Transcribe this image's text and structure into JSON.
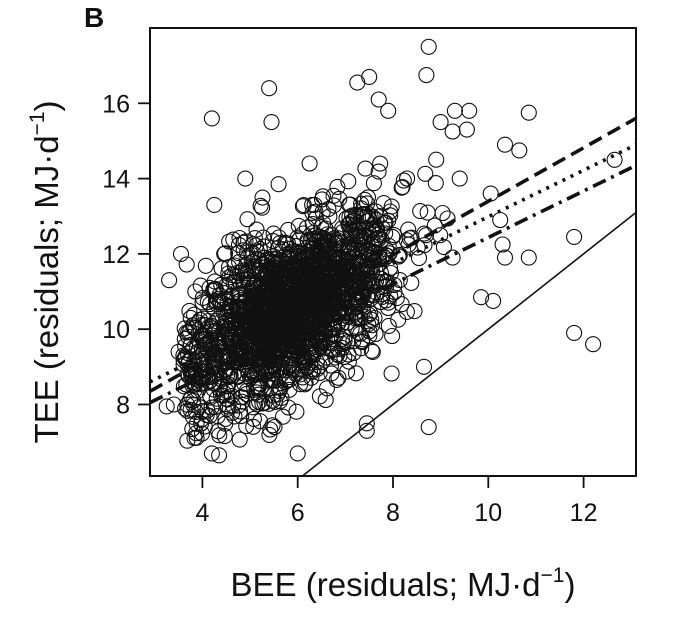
{
  "panel_label": "B",
  "chart_data": {
    "type": "scatter",
    "title": "",
    "xlabel": {
      "main": "BEE (residuals; MJ·d",
      "sup": "−1",
      "close": ")"
    },
    "ylabel": {
      "main": "TEE (residuals; MJ·d",
      "sup": "−1",
      "close": ")"
    },
    "xlim": [
      2.9,
      13.1
    ],
    "ylim": [
      6.1,
      18.0
    ],
    "xticks": [
      4,
      6,
      8,
      10,
      12
    ],
    "yticks": [
      8,
      10,
      12,
      14,
      16
    ],
    "xtick_labels": [
      "4",
      "6",
      "8",
      "10",
      "12"
    ],
    "ytick_labels": [
      "8",
      "10",
      "12",
      "14",
      "16"
    ],
    "grid": false,
    "legend": "none",
    "marker": "open-circle",
    "n_points_approx": 2000,
    "cloud": {
      "x_mean": 5.9,
      "x_sd": 1.05,
      "y_mean": 10.6,
      "y_sd": 1.25,
      "slope": 0.62
    },
    "outliers": [
      {
        "x": 8.75,
        "y": 17.5
      },
      {
        "x": 8.7,
        "y": 16.75
      },
      {
        "x": 7.5,
        "y": 16.7
      },
      {
        "x": 7.25,
        "y": 16.55
      },
      {
        "x": 5.4,
        "y": 16.4
      },
      {
        "x": 4.2,
        "y": 15.6
      },
      {
        "x": 5.45,
        "y": 15.5
      },
      {
        "x": 7.7,
        "y": 16.1
      },
      {
        "x": 7.9,
        "y": 15.8
      },
      {
        "x": 9.3,
        "y": 15.8
      },
      {
        "x": 9.6,
        "y": 15.8
      },
      {
        "x": 10.85,
        "y": 15.75
      },
      {
        "x": 9.0,
        "y": 15.5
      },
      {
        "x": 9.25,
        "y": 15.25
      },
      {
        "x": 9.55,
        "y": 15.3
      },
      {
        "x": 10.35,
        "y": 14.9
      },
      {
        "x": 10.65,
        "y": 14.75
      },
      {
        "x": 12.65,
        "y": 14.5
      },
      {
        "x": 9.4,
        "y": 14.0
      },
      {
        "x": 10.05,
        "y": 13.6
      },
      {
        "x": 10.25,
        "y": 12.9
      },
      {
        "x": 10.3,
        "y": 12.25
      },
      {
        "x": 10.35,
        "y": 11.9
      },
      {
        "x": 10.85,
        "y": 11.9
      },
      {
        "x": 11.8,
        "y": 12.45
      },
      {
        "x": 9.85,
        "y": 10.85
      },
      {
        "x": 10.1,
        "y": 10.75
      },
      {
        "x": 11.8,
        "y": 9.9
      },
      {
        "x": 12.2,
        "y": 9.6
      },
      {
        "x": 8.65,
        "y": 9.0
      },
      {
        "x": 8.75,
        "y": 7.4
      },
      {
        "x": 6.0,
        "y": 6.7
      },
      {
        "x": 4.35,
        "y": 6.65
      },
      {
        "x": 4.2,
        "y": 6.7
      },
      {
        "x": 3.4,
        "y": 8.0
      },
      {
        "x": 3.25,
        "y": 7.95
      },
      {
        "x": 3.3,
        "y": 11.3
      },
      {
        "x": 3.55,
        "y": 12.0
      },
      {
        "x": 4.25,
        "y": 13.3
      },
      {
        "x": 4.9,
        "y": 14.0
      },
      {
        "x": 5.6,
        "y": 13.85
      },
      {
        "x": 7.45,
        "y": 7.5
      },
      {
        "x": 7.45,
        "y": 7.3
      },
      {
        "x": 6.25,
        "y": 14.4
      },
      {
        "x": 4.15,
        "y": 11.1
      },
      {
        "x": 3.85,
        "y": 11.0
      },
      {
        "x": 3.6,
        "y": 9.3
      },
      {
        "x": 3.5,
        "y": 9.4
      }
    ],
    "lines": [
      {
        "style": "solid",
        "x": [
          6.1,
          13.1
        ],
        "y": [
          6.1,
          13.1
        ]
      },
      {
        "style": "dashed",
        "x": [
          2.9,
          13.1
        ],
        "y": [
          8.35,
          15.6
        ]
      },
      {
        "style": "dotted",
        "x": [
          2.9,
          13.1
        ],
        "y": [
          8.6,
          14.9
        ]
      },
      {
        "style": "dashdot",
        "x": [
          2.9,
          13.1
        ],
        "y": [
          8.05,
          14.35
        ]
      }
    ]
  }
}
